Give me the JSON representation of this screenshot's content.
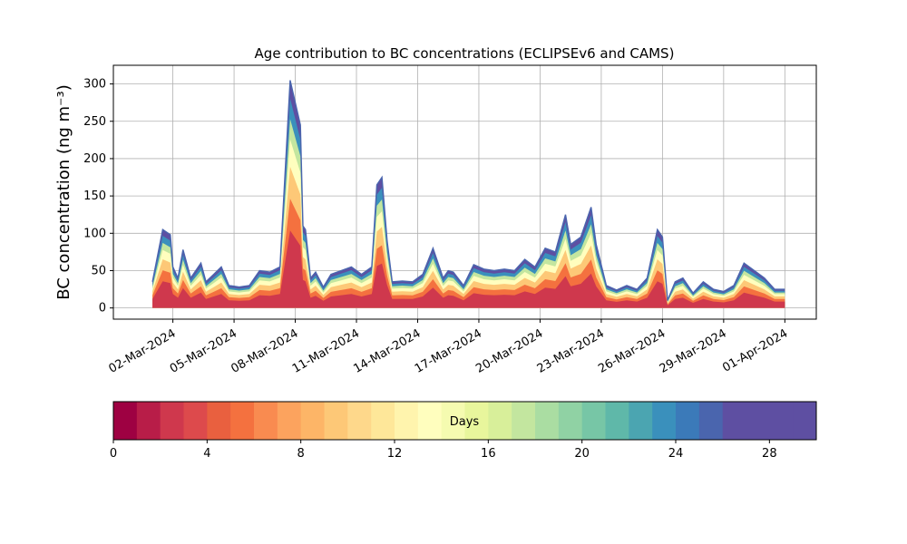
{
  "chart_data": [
    {
      "type": "area",
      "title": "Age contribution to BC concentrations (ECLIPSEv6 and CAMS)",
      "ylabel": "BC concentration (ng m⁻³)",
      "xlabel": "",
      "stacking": "stacked by age bins (0-30 days)",
      "ylim": [
        -15,
        325
      ],
      "xlim": [
        "2024-02-28T02:00",
        "2024-04-02T13:00"
      ],
      "grid": true,
      "yticks": [
        0,
        50,
        100,
        150,
        200,
        250,
        300
      ],
      "xticks": [
        "2024-03-02",
        "2024-03-05",
        "2024-03-08",
        "2024-03-11",
        "2024-03-14",
        "2024-03-17",
        "2024-03-20",
        "2024-03-23",
        "2024-03-26",
        "2024-03-29",
        "2024-04-01"
      ],
      "xtick_labels": [
        "02-Mar-2024",
        "05-Mar-2024",
        "08-Mar-2024",
        "11-Mar-2024",
        "14-Mar-2024",
        "17-Mar-2024",
        "20-Mar-2024",
        "23-Mar-2024",
        "26-Mar-2024",
        "29-Mar-2024",
        "01-Apr-2024"
      ],
      "total": {
        "x": [
          "2024-03-01T00:00",
          "2024-03-01T12:00",
          "2024-03-01T21:00",
          "2024-03-02T00:00",
          "2024-03-02T06:00",
          "2024-03-02T12:00",
          "2024-03-02T21:00",
          "2024-03-03T09:00",
          "2024-03-03T15:00",
          "2024-03-04T00:00",
          "2024-03-04T09:00",
          "2024-03-04T18:00",
          "2024-03-05T06:00",
          "2024-03-05T18:00",
          "2024-03-06T06:00",
          "2024-03-06T18:00",
          "2024-03-07T06:00",
          "2024-03-07T18:00",
          "2024-03-08T06:00",
          "2024-03-08T09:00",
          "2024-03-08T12:00",
          "2024-03-08T18:00",
          "2024-03-09T00:00",
          "2024-03-09T09:00",
          "2024-03-09T18:00",
          "2024-03-10T06:00",
          "2024-03-10T18:00",
          "2024-03-11T06:00",
          "2024-03-11T18:00",
          "2024-03-12T00:00",
          "2024-03-12T06:00",
          "2024-03-12T12:00",
          "2024-03-12T18:00",
          "2024-03-13T06:00",
          "2024-03-13T18:00",
          "2024-03-14T06:00",
          "2024-03-14T18:00",
          "2024-03-15T06:00",
          "2024-03-15T12:00",
          "2024-03-15T18:00",
          "2024-03-16T06:00",
          "2024-03-16T18:00",
          "2024-03-17T06:00",
          "2024-03-17T18:00",
          "2024-03-18T06:00",
          "2024-03-18T18:00",
          "2024-03-19T06:00",
          "2024-03-19T18:00",
          "2024-03-20T06:00",
          "2024-03-20T18:00",
          "2024-03-21T06:00",
          "2024-03-21T12:00",
          "2024-03-22T00:00",
          "2024-03-22T12:00",
          "2024-03-22T18:00",
          "2024-03-23T06:00",
          "2024-03-23T18:00",
          "2024-03-24T06:00",
          "2024-03-24T18:00",
          "2024-03-25T06:00",
          "2024-03-25T18:00",
          "2024-03-26T00:00",
          "2024-03-26T06:00",
          "2024-03-26T15:00",
          "2024-03-27T00:00",
          "2024-03-27T12:00",
          "2024-03-28T00:00",
          "2024-03-28T12:00",
          "2024-03-29T00:00",
          "2024-03-29T12:00",
          "2024-03-30T00:00",
          "2024-03-30T12:00",
          "2024-03-31T00:00",
          "2024-03-31T12:00",
          "2024-04-01T00:00"
        ],
        "values": [
          35,
          105,
          98,
          55,
          40,
          78,
          40,
          60,
          35,
          45,
          55,
          30,
          28,
          30,
          50,
          48,
          55,
          305,
          245,
          110,
          105,
          40,
          48,
          28,
          45,
          50,
          55,
          45,
          55,
          165,
          175,
          90,
          35,
          36,
          35,
          45,
          80,
          40,
          50,
          48,
          30,
          58,
          52,
          50,
          52,
          50,
          65,
          55,
          80,
          75,
          125,
          85,
          95,
          135,
          85,
          30,
          24,
          30,
          25,
          40,
          105,
          95,
          10,
          35,
          40,
          20,
          35,
          25,
          22,
          30,
          60,
          50,
          40,
          25,
          25
        ]
      },
      "bands": [
        {
          "age_max_days": 30,
          "fraction": 1.0
        },
        {
          "age_max_days": 24,
          "fraction": 0.92
        },
        {
          "age_max_days": 18,
          "fraction": 0.83
        },
        {
          "age_max_days": 14,
          "fraction": 0.74
        },
        {
          "age_max_days": 10,
          "fraction": 0.62
        },
        {
          "age_max_days": 6,
          "fraction": 0.48
        },
        {
          "age_max_days": 3,
          "fraction": 0.34
        }
      ],
      "colorbar": {
        "label": "Days",
        "range": [
          0,
          30
        ],
        "ticks": [
          0,
          4,
          8,
          12,
          16,
          20,
          24,
          28
        ],
        "colors": [
          "#9e0142",
          "#b81d48",
          "#cf384d",
          "#dd4a4c",
          "#e9603f",
          "#f4713f",
          "#f98b50",
          "#fca35e",
          "#fdb567",
          "#fdc877",
          "#fed88b",
          "#fee799",
          "#fff4ad",
          "#fffebe",
          "#f5fbb0",
          "#e8f69c",
          "#d8ef9a",
          "#c3e69f",
          "#aadda2",
          "#90d2a4",
          "#77c6a6",
          "#5fb8a9",
          "#4ba5b1",
          "#3a90bc",
          "#3b7ab9",
          "#4a65ae",
          "#5e4fa2",
          "#5e4fa2",
          "#5e4fa2",
          "#5e4fa2"
        ]
      }
    }
  ]
}
